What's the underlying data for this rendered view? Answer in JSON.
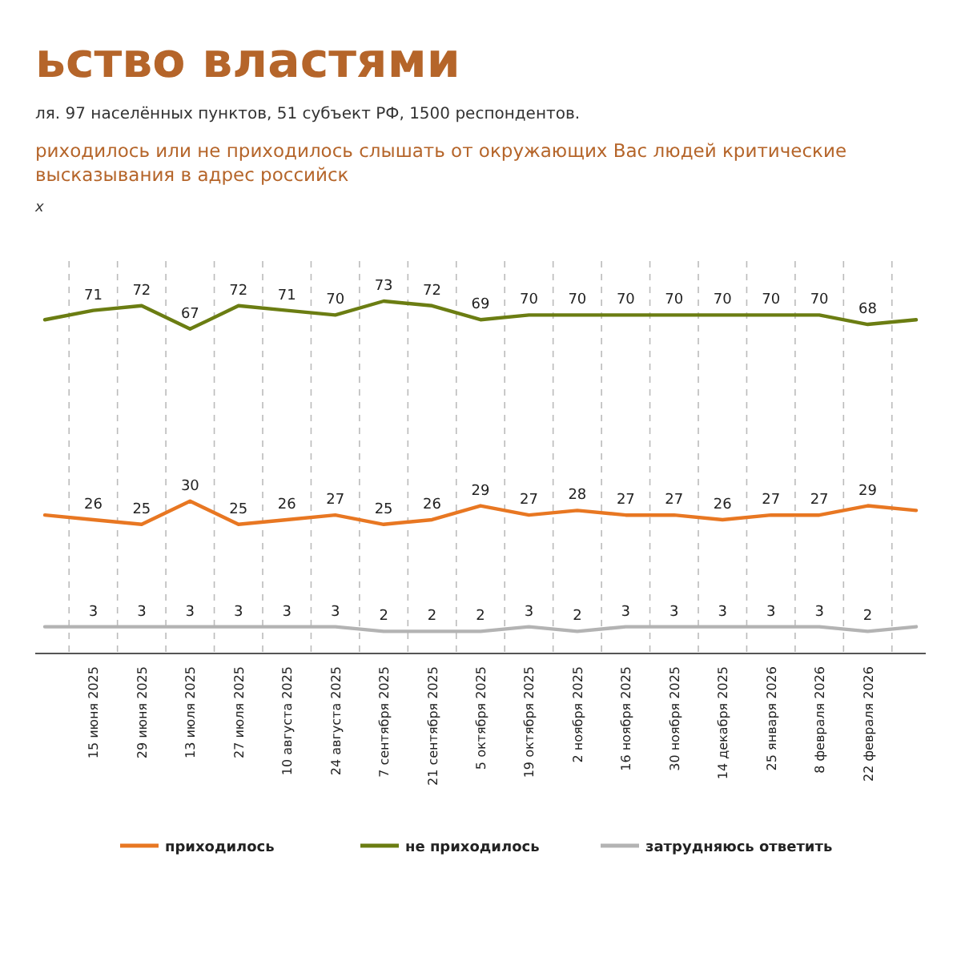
{
  "chart_data": {
    "type": "line",
    "title": "ьство властями",
    "subtitle": "ля. 97 населённых пунктов, 51 субъект РФ, 1500 респондентов.",
    "annotations": [
      "риходилось или не приходилось слышать от окружающих Вас людей критические высказывания в адрес российск",
      "х"
    ],
    "categories": [
      null,
      "15 июня 2025",
      "29 июня 2025",
      "13 июля 2025",
      "27 июля 2025",
      "10 августа 2025",
      "24 августа 2025",
      "7 сентября 2025",
      "21 сентября 2025",
      "5 октября 2025",
      "19 октября 2025",
      "2 ноября 2025",
      "16 ноября 2025",
      "30 ноября 2025",
      "14 декабря 2025",
      "25 января 2026",
      "8 февраля 2026",
      "22 февраля 2026",
      null
    ],
    "series": [
      {
        "name": "приходилось",
        "color": "#e87722",
        "values": [
          27,
          26,
          25,
          30,
          25,
          26,
          27,
          25,
          26,
          29,
          27,
          28,
          27,
          27,
          26,
          27,
          27,
          29,
          28
        ],
        "value_labels": [
          null,
          "26",
          "25",
          "30",
          "25",
          "26",
          "27",
          "25",
          "26",
          "29",
          "27",
          "28",
          "27",
          "27",
          "26",
          "27",
          "27",
          "29",
          null
        ]
      },
      {
        "name": "не приходилось",
        "color": "#6b7d12",
        "values": [
          69,
          71,
          72,
          67,
          72,
          71,
          70,
          73,
          72,
          69,
          70,
          70,
          70,
          70,
          70,
          70,
          70,
          68,
          69
        ],
        "value_labels": [
          null,
          "71",
          "72",
          "67",
          "72",
          "71",
          "70",
          "73",
          "72",
          "69",
          "70",
          "70",
          "70",
          "70",
          "70",
          "70",
          "70",
          "68",
          null
        ]
      },
      {
        "name": "затрудняюсь ответить",
        "color": "#b3b3b3",
        "values": [
          3,
          3,
          3,
          3,
          3,
          3,
          3,
          2,
          2,
          2,
          3,
          2,
          3,
          3,
          3,
          3,
          3,
          2,
          3
        ],
        "value_labels": [
          null,
          "3",
          "3",
          "3",
          "3",
          "3",
          "3",
          "2",
          "2",
          "2",
          "3",
          "2",
          "3",
          "3",
          "3",
          "3",
          "3",
          "2",
          null
        ]
      }
    ],
    "grid": "x",
    "legend": "bottom",
    "marker": "none",
    "line_style": "solid"
  }
}
